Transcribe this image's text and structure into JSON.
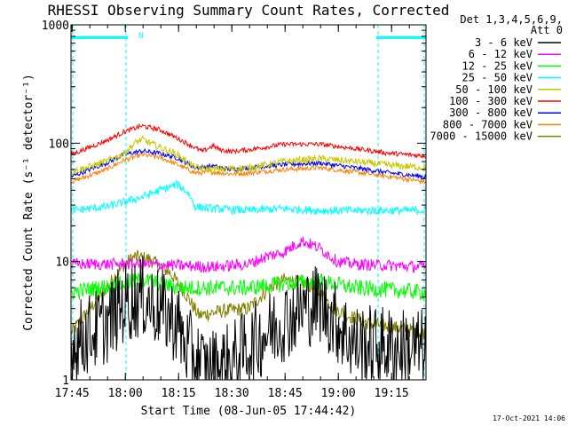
{
  "chart_data": {
    "type": "line",
    "title": "RHESSI Observing Summary Count Rates, Corrected",
    "xlabel": "Start Time (08-Jun-05 17:44:42)",
    "ylabel": "Corrected Count Rate (s⁻¹ detector⁻¹)",
    "yscale": "log",
    "ylim": [
      1,
      1000
    ],
    "xlim_minutes": [
      0,
      100
    ],
    "x_ticks": [
      {
        "label": "17:45",
        "minute": 0.3
      },
      {
        "label": "18:00",
        "minute": 15.3
      },
      {
        "label": "18:15",
        "minute": 30.3
      },
      {
        "label": "18:30",
        "minute": 45.3
      },
      {
        "label": "18:45",
        "minute": 60.3
      },
      {
        "label": "19:00",
        "minute": 75.3
      },
      {
        "label": "19:15",
        "minute": 90.3
      }
    ],
    "y_ticks": [
      {
        "label": "1",
        "value": 1
      },
      {
        "label": "10",
        "value": 10
      },
      {
        "label": "100",
        "value": 100
      },
      {
        "label": "1000",
        "value": 1000
      }
    ],
    "legend_header": [
      "Det 1,3,4,5,6,9,",
      "Att 0"
    ],
    "legend_position": "top-right outside plot",
    "night_marker": "N",
    "footer_date": "17-Oct-2021 14:06",
    "night_intervals": [
      [
        0,
        16
      ],
      [
        86,
        100
      ]
    ],
    "night_bar_value": 780,
    "series": [
      {
        "name": "3 - 6 keV",
        "color": "#000000",
        "x": [
          0,
          10,
          15,
          20,
          25,
          30,
          32,
          38,
          45,
          55,
          65,
          70,
          75,
          80,
          100
        ],
        "values": [
          2.0,
          3.0,
          4.5,
          5.0,
          4.0,
          3.0,
          2.0,
          1.2,
          1.4,
          2.5,
          4.0,
          4.5,
          3.0,
          2.0,
          1.8
        ],
        "noise": 0.35
      },
      {
        "name": "6 - 12 keV",
        "color": "#ff00ff",
        "x": [
          0,
          20,
          40,
          50,
          55,
          60,
          65,
          70,
          75,
          80,
          100
        ],
        "values": [
          9.5,
          9.5,
          9.0,
          9.5,
          11.0,
          12.0,
          15.0,
          13.0,
          10.0,
          9.5,
          9.0
        ],
        "noise": 0.05
      },
      {
        "name": "12 - 25 keV",
        "color": "#00ff00",
        "x": [
          0,
          15,
          20,
          25,
          30,
          40,
          50,
          60,
          70,
          80,
          100
        ],
        "values": [
          5.5,
          6.5,
          7.0,
          6.5,
          6.0,
          6.0,
          6.0,
          6.5,
          6.8,
          6.0,
          5.5
        ],
        "noise": 0.07
      },
      {
        "name": "25 - 50 keV",
        "color": "#00ffff",
        "x": [
          0,
          10,
          20,
          25,
          30,
          33,
          35,
          40,
          50,
          60,
          70,
          80,
          100
        ],
        "values": [
          27,
          29,
          35,
          40,
          45,
          38,
          29,
          28,
          27,
          28,
          27,
          27,
          27
        ],
        "noise": 0.035
      },
      {
        "name": "50 - 100 keV",
        "color": "#c8c800",
        "x": [
          0,
          10,
          15,
          18,
          20,
          24,
          30,
          35,
          40,
          50,
          60,
          70,
          80,
          90,
          100
        ],
        "values": [
          57,
          70,
          82,
          100,
          108,
          95,
          80,
          62,
          60,
          62,
          70,
          74,
          70,
          65,
          62
        ],
        "noise": 0.03
      },
      {
        "name": "100 - 300 keV",
        "color": "#ff0000",
        "x": [
          0,
          10,
          15,
          20,
          25,
          30,
          37,
          40,
          42,
          45,
          50,
          60,
          70,
          80,
          90,
          100
        ],
        "values": [
          80,
          105,
          125,
          140,
          130,
          110,
          85,
          95,
          88,
          85,
          88,
          98,
          98,
          90,
          82,
          78
        ],
        "noise": 0.02
      },
      {
        "name": "300 - 800 keV",
        "color": "#0000ff",
        "x": [
          0,
          10,
          15,
          20,
          25,
          30,
          35,
          40,
          45,
          50,
          60,
          70,
          80,
          90,
          100
        ],
        "values": [
          52,
          68,
          80,
          86,
          82,
          75,
          62,
          64,
          60,
          62,
          66,
          68,
          62,
          56,
          52
        ],
        "noise": 0.02
      },
      {
        "name": "800 - 7000 keV",
        "color": "#ff8000",
        "x": [
          0,
          10,
          15,
          20,
          25,
          30,
          35,
          40,
          45,
          50,
          60,
          70,
          80,
          90,
          100
        ],
        "values": [
          47,
          60,
          72,
          80,
          76,
          66,
          56,
          57,
          55,
          56,
          60,
          62,
          57,
          52,
          47
        ],
        "noise": 0.02
      },
      {
        "name": "7000 - 15000 keV",
        "color": "#808000",
        "x": [
          0,
          10,
          15,
          18,
          22,
          28,
          32,
          36,
          42,
          50,
          56,
          60,
          66,
          70,
          74,
          78,
          84,
          90,
          100
        ],
        "values": [
          2.5,
          6.0,
          9.5,
          11.0,
          10.5,
          8.0,
          5.5,
          3.5,
          3.8,
          4.0,
          6.0,
          7.0,
          6.5,
          5.5,
          4.0,
          3.5,
          3.0,
          2.8,
          2.5
        ],
        "noise": 0.06
      }
    ]
  }
}
